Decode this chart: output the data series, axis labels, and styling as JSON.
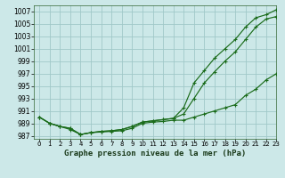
{
  "title": "Graphe pression niveau de la mer (hPa)",
  "background_color": "#cce8e8",
  "grid_color": "#a0c8c8",
  "line_color": "#1a6b1a",
  "xlim": [
    -0.5,
    23
  ],
  "ylim": [
    986.5,
    1008
  ],
  "yticks": [
    987,
    989,
    991,
    993,
    995,
    997,
    999,
    1001,
    1003,
    1005,
    1007
  ],
  "xticks": [
    0,
    1,
    2,
    3,
    4,
    5,
    6,
    7,
    8,
    9,
    10,
    11,
    12,
    13,
    14,
    15,
    16,
    17,
    18,
    19,
    20,
    21,
    22,
    23
  ],
  "series": [
    [
      990.0,
      989.0,
      988.5,
      988.0,
      987.2,
      987.5,
      987.6,
      987.7,
      987.8,
      988.2,
      989.0,
      989.2,
      989.3,
      989.5,
      989.5,
      990.0,
      990.5,
      991.0,
      991.5,
      992.0,
      993.5,
      994.5,
      996.0,
      997.0
    ],
    [
      990.0,
      989.0,
      988.5,
      988.2,
      987.2,
      987.5,
      987.7,
      987.8,
      988.0,
      988.5,
      989.2,
      989.4,
      989.6,
      989.8,
      990.5,
      993.0,
      995.5,
      997.3,
      999.0,
      1000.5,
      1002.5,
      1004.5,
      1005.8,
      1006.2
    ],
    [
      990.0,
      989.0,
      988.5,
      988.2,
      987.2,
      987.5,
      987.7,
      987.8,
      988.0,
      988.5,
      989.2,
      989.4,
      989.6,
      989.8,
      991.5,
      995.5,
      997.5,
      999.5,
      1001.0,
      1002.5,
      1004.5,
      1006.0,
      1006.5,
      1007.3
    ]
  ]
}
